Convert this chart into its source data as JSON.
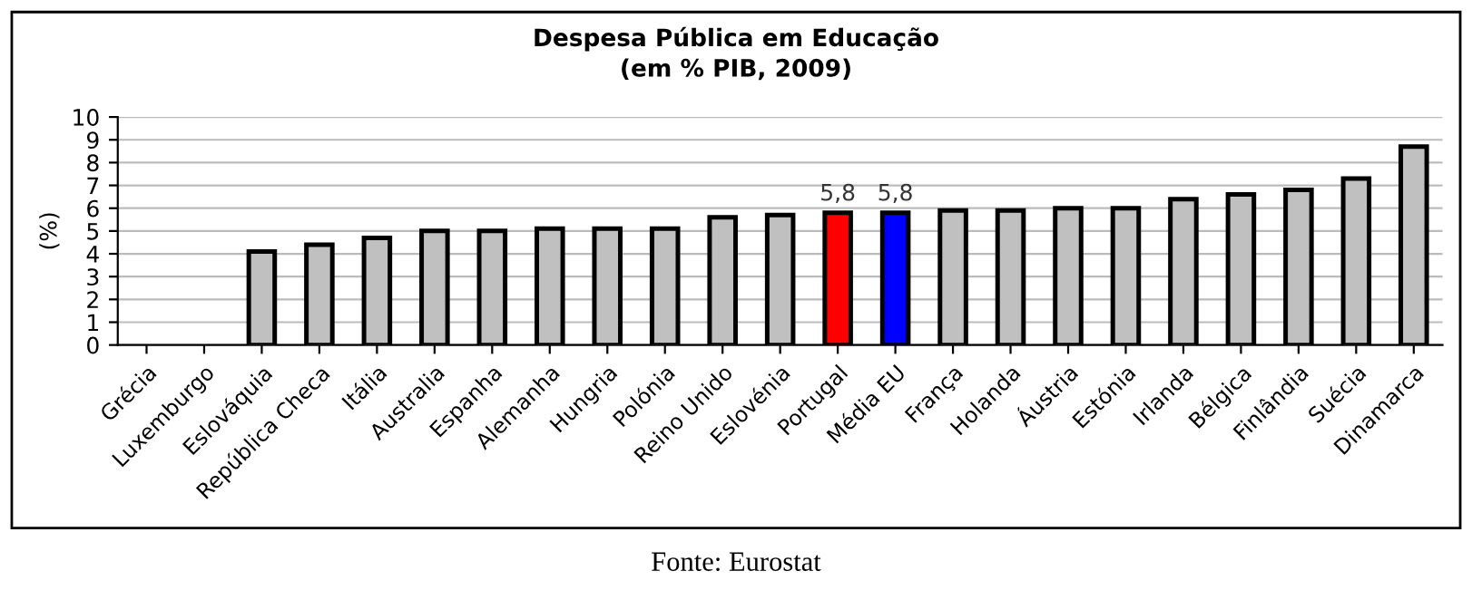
{
  "chart_data": {
    "type": "bar",
    "title": "Despesa Pública em Educação\n(em % PIB, 2009)",
    "ylabel": "(%)",
    "categories": [
      "Grécia",
      "Luxemburgo",
      "Eslováquia",
      "República Checa",
      "Itália",
      "Australia",
      "Espanha",
      "Alemanha",
      "Hungria",
      "Polónia",
      "Reino Unido",
      "Eslovénia",
      "Portugal",
      "Média EU",
      "França",
      "Holanda",
      "Áustria",
      "Estónia",
      "Irlanda",
      "Bélgica",
      "Finlândia",
      "Suécia",
      "Dinamarca"
    ],
    "values": [
      null,
      null,
      4.1,
      4.4,
      4.7,
      5.0,
      5.0,
      5.1,
      5.1,
      5.1,
      5.6,
      5.7,
      5.8,
      5.8,
      5.9,
      5.9,
      6.0,
      6.0,
      6.4,
      6.6,
      6.8,
      7.3,
      8.7
    ],
    "colors": [
      "#c0c0c0",
      "#c0c0c0",
      "#c0c0c0",
      "#c0c0c0",
      "#c0c0c0",
      "#c0c0c0",
      "#c0c0c0",
      "#c0c0c0",
      "#c0c0c0",
      "#c0c0c0",
      "#c0c0c0",
      "#c0c0c0",
      "#ff0000",
      "#0000ff",
      "#c0c0c0",
      "#c0c0c0",
      "#c0c0c0",
      "#c0c0c0",
      "#c0c0c0",
      "#c0c0c0",
      "#c0c0c0",
      "#c0c0c0",
      "#c0c0c0"
    ],
    "value_labels": [
      null,
      null,
      null,
      null,
      null,
      null,
      null,
      null,
      null,
      null,
      null,
      null,
      "5,8",
      "5,8",
      null,
      null,
      null,
      null,
      null,
      null,
      null,
      null,
      null
    ],
    "ylim": [
      0,
      10
    ],
    "yticks": [
      0,
      1,
      2,
      3,
      4,
      5,
      6,
      7,
      8,
      9,
      10
    ],
    "grid": "y",
    "annotations": [
      "Fonte: Eurostat"
    ]
  }
}
